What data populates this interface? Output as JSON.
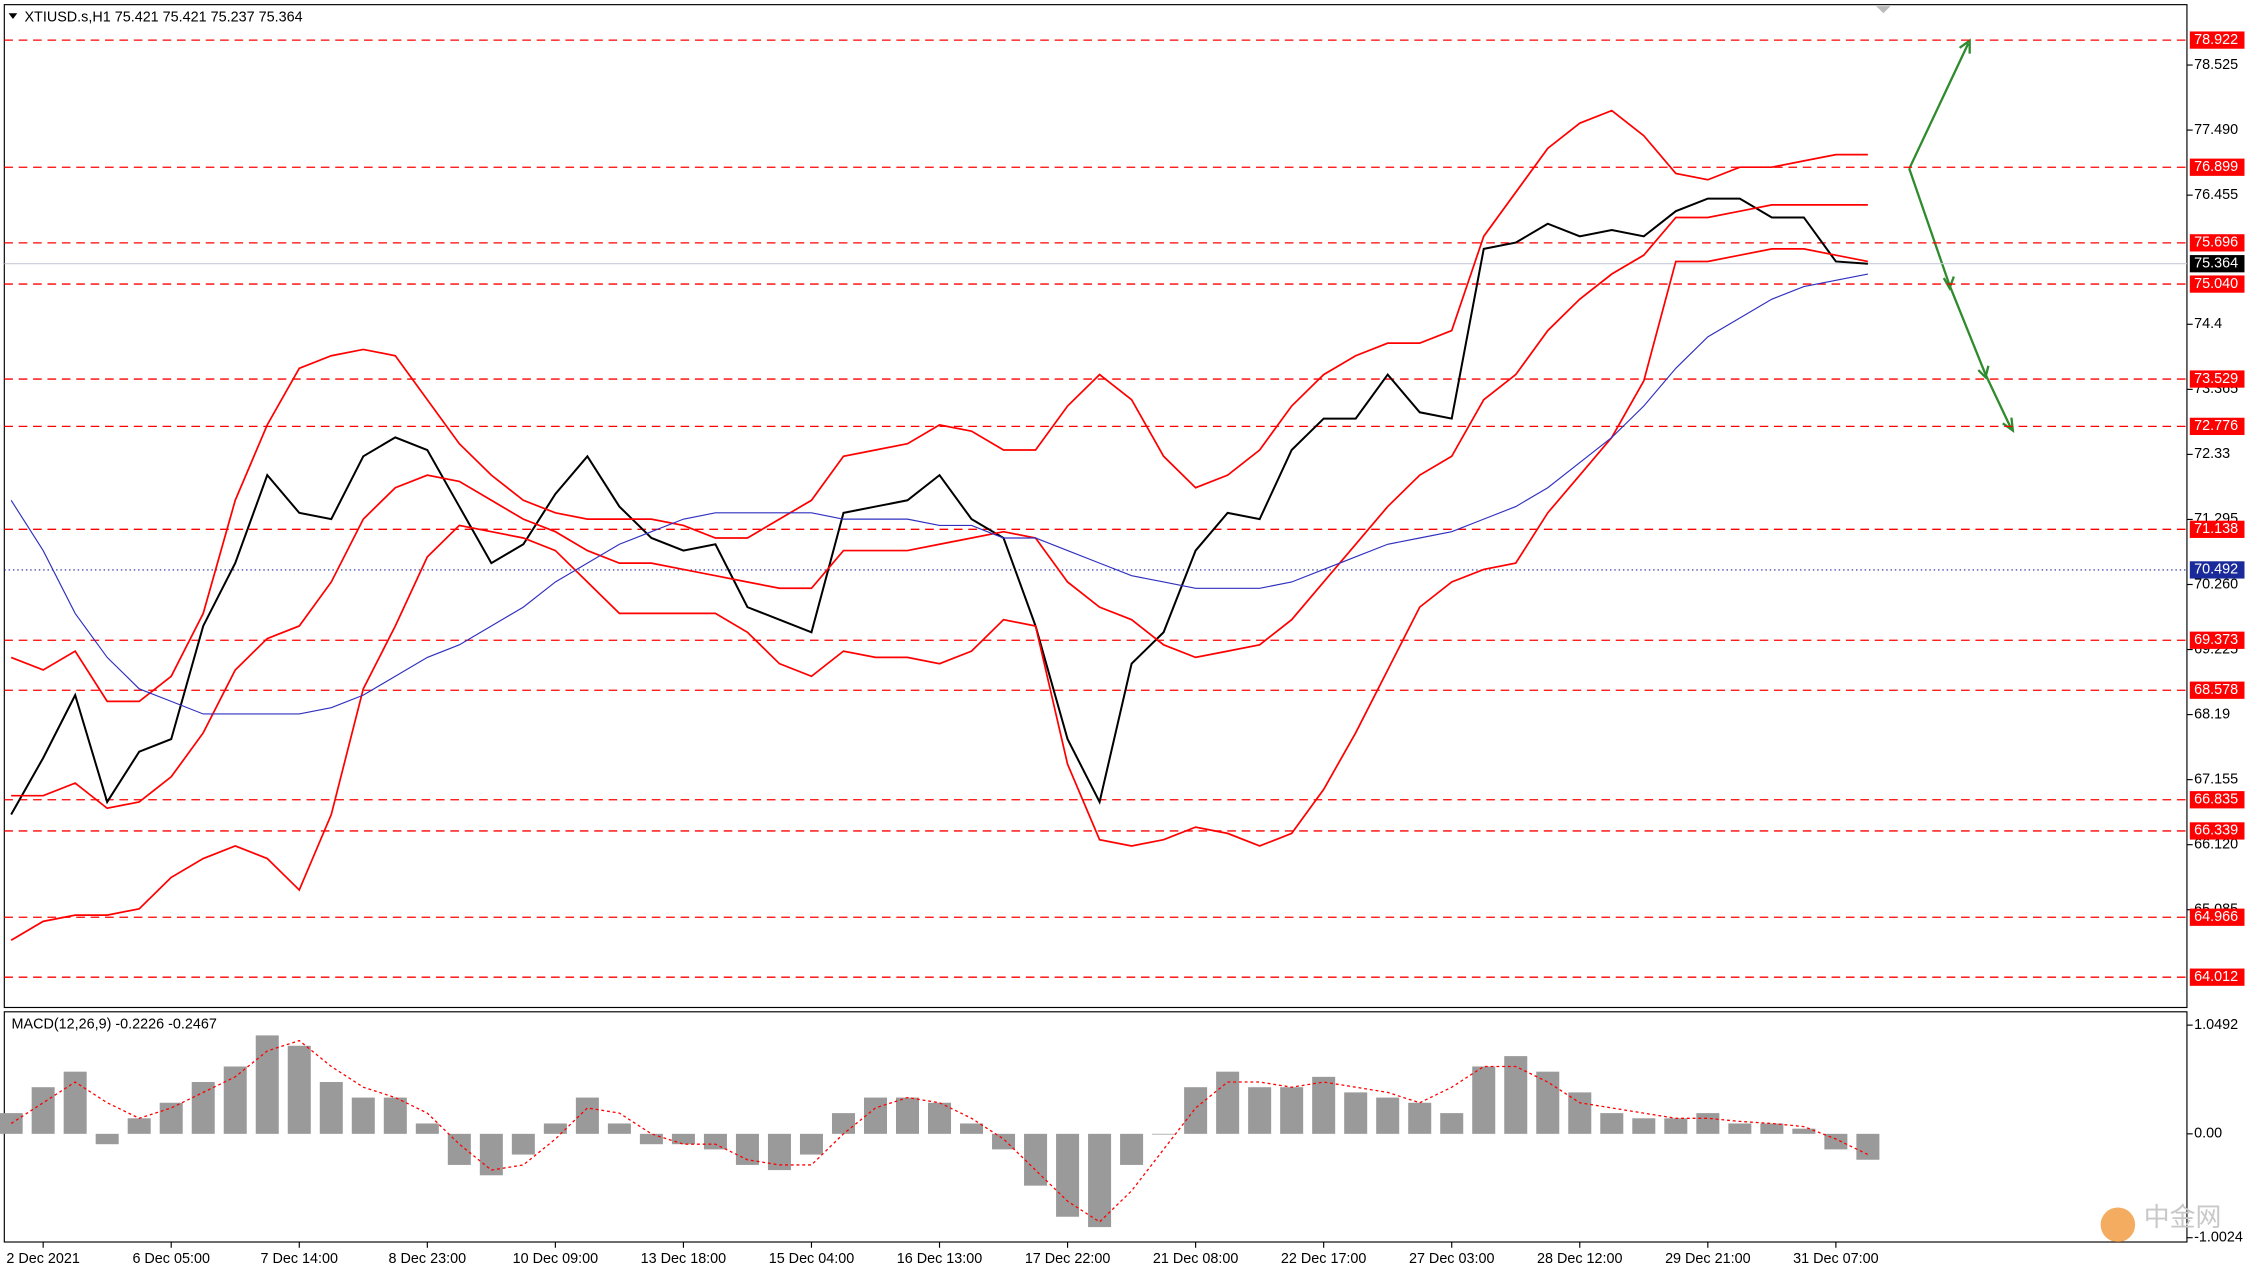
{
  "chart_data": [
    {
      "type": "line",
      "title": "XTIUSD.s,H1  75.421 75.421 75.237 75.364",
      "categories": [
        null,
        "2 Dec 2021",
        null,
        null,
        null,
        "6 Dec 05:00",
        null,
        null,
        null,
        "7 Dec 14:00",
        null,
        null,
        null,
        "8 Dec 23:00",
        null,
        null,
        null,
        "10 Dec 09:00",
        null,
        null,
        null,
        "13 Dec 18:00",
        null,
        null,
        null,
        "15 Dec 04:00",
        null,
        null,
        null,
        "16 Dec 13:00",
        null,
        null,
        null,
        "17 Dec 22:00",
        null,
        null,
        null,
        "21 Dec 08:00",
        null,
        null,
        null,
        "22 Dec 17:00",
        null,
        null,
        null,
        "27 Dec 03:00",
        null,
        null,
        null,
        "28 Dec 12:00",
        null,
        null,
        null,
        "29 Dec 21:00",
        null,
        null,
        null,
        "31 Dec 07:00",
        null
      ],
      "series": [
        {
          "color": "#000000",
          "values": [
            66.6,
            67.5,
            68.5,
            66.8,
            67.6,
            67.8,
            69.6,
            70.6,
            72.0,
            71.4,
            71.3,
            72.3,
            72.6,
            72.4,
            71.5,
            70.6,
            70.9,
            71.7,
            72.3,
            71.5,
            71.0,
            70.8,
            70.9,
            69.9,
            69.7,
            69.5,
            71.4,
            71.5,
            71.6,
            72.0,
            71.3,
            71.0,
            69.6,
            67.8,
            66.8,
            69.0,
            69.5,
            70.8,
            71.4,
            71.3,
            72.4,
            72.9,
            72.9,
            73.6,
            73.0,
            72.9,
            75.6,
            75.7,
            76.0,
            75.8,
            75.9,
            75.8,
            76.2,
            76.4,
            76.4,
            76.1,
            76.1,
            75.4,
            75.364
          ]
        },
        {
          "color": "#ff0000",
          "values": [
            69.1,
            68.9,
            69.2,
            68.4,
            68.4,
            68.8,
            69.8,
            71.6,
            72.8,
            73.7,
            73.9,
            74.0,
            73.9,
            73.2,
            72.5,
            72.0,
            71.6,
            71.4,
            71.3,
            71.3,
            71.3,
            71.2,
            71.0,
            71.0,
            71.3,
            71.6,
            72.3,
            72.4,
            72.5,
            72.8,
            72.7,
            72.4,
            72.4,
            73.1,
            73.6,
            73.2,
            72.3,
            71.8,
            72.0,
            72.4,
            73.1,
            73.6,
            73.9,
            74.1,
            74.1,
            74.3,
            75.8,
            76.5,
            77.2,
            77.6,
            77.8,
            77.4,
            76.8,
            76.7,
            76.9,
            76.9,
            77.0,
            77.1,
            77.1
          ]
        },
        {
          "color": "#ff0000",
          "values": [
            66.9,
            66.9,
            67.1,
            66.7,
            66.8,
            67.2,
            67.9,
            68.9,
            69.4,
            69.6,
            70.3,
            71.3,
            71.8,
            72.0,
            71.9,
            71.6,
            71.3,
            71.1,
            70.8,
            70.6,
            70.6,
            70.5,
            70.4,
            70.3,
            70.2,
            70.2,
            70.8,
            70.8,
            70.8,
            70.9,
            71.0,
            71.1,
            71.0,
            70.3,
            69.9,
            69.7,
            69.3,
            69.1,
            69.2,
            69.3,
            69.7,
            70.3,
            70.9,
            71.5,
            72.0,
            72.3,
            73.2,
            73.6,
            74.3,
            74.8,
            75.2,
            75.5,
            76.1,
            76.1,
            76.2,
            76.3,
            76.3,
            76.3,
            76.3
          ]
        },
        {
          "color": "#ff0000",
          "values": [
            64.6,
            64.9,
            65.0,
            65.0,
            65.1,
            65.6,
            65.9,
            66.1,
            65.9,
            65.4,
            66.6,
            68.6,
            69.6,
            70.7,
            71.2,
            71.1,
            71.0,
            70.8,
            70.3,
            69.8,
            69.8,
            69.8,
            69.8,
            69.5,
            69.0,
            68.8,
            69.2,
            69.1,
            69.1,
            69.0,
            69.2,
            69.7,
            69.6,
            67.4,
            66.2,
            66.1,
            66.2,
            66.4,
            66.3,
            66.1,
            66.3,
            67.0,
            67.9,
            68.9,
            69.9,
            70.3,
            70.5,
            70.6,
            71.4,
            72.0,
            72.6,
            73.5,
            75.4,
            75.4,
            75.5,
            75.6,
            75.6,
            75.5,
            75.4
          ]
        },
        {
          "color": "#3030c0",
          "values": [
            71.6,
            70.8,
            69.8,
            69.1,
            68.6,
            68.4,
            68.2,
            68.2,
            68.2,
            68.2,
            68.3,
            68.5,
            68.8,
            69.1,
            69.3,
            69.6,
            69.9,
            70.3,
            70.6,
            70.9,
            71.1,
            71.3,
            71.4,
            71.4,
            71.4,
            71.4,
            71.3,
            71.3,
            71.3,
            71.2,
            71.2,
            71.0,
            71.0,
            70.8,
            70.6,
            70.4,
            70.3,
            70.2,
            70.2,
            70.2,
            70.3,
            70.5,
            70.7,
            70.9,
            71.0,
            71.1,
            71.3,
            71.5,
            71.8,
            72.2,
            72.6,
            73.1,
            73.7,
            74.2,
            74.5,
            74.8,
            75.0,
            75.1,
            75.2
          ]
        }
      ],
      "ylim": [
        63.53,
        79.44
      ],
      "yticks": [
        78.525,
        {
          "value": 77.49,
          "label": "77.490"
        },
        76.455,
        74.4,
        73.365,
        72.33,
        71.295,
        {
          "value": 70.26,
          "label": "70.260"
        },
        69.225,
        68.19,
        67.155,
        {
          "value": 66.12,
          "label": "66.120"
        },
        65.085
      ],
      "levels": [
        78.922,
        76.899,
        75.696,
        75.04,
        73.529,
        72.776,
        71.138,
        69.373,
        68.578,
        66.835,
        66.339,
        64.966,
        64.012
      ],
      "level_labels": [
        "78.922",
        "76.899",
        "75.696",
        "75.040",
        "73.529",
        "72.776",
        "71.138",
        "69.373",
        "68.578",
        "66.835",
        "66.339",
        "64.966",
        "64.012"
      ],
      "level_color": "#ff0000",
      "marker_line": 70.492,
      "marker_color": "#1a2a9a",
      "current_price": 75.364,
      "current_color": "#000000"
    },
    {
      "type": "bar",
      "title": "MACD(12,26,9) -0.2226 -0.2467",
      "series": [
        {
          "color": "#9a9a9a",
          "values": [
            0.2,
            0.45,
            0.6,
            -0.1,
            0.15,
            0.3,
            0.5,
            0.65,
            0.95,
            0.85,
            0.5,
            0.35,
            0.35,
            0.1,
            -0.3,
            -0.4,
            -0.2,
            0.1,
            0.35,
            0.1,
            -0.1,
            -0.1,
            -0.15,
            -0.3,
            -0.35,
            -0.2,
            0.2,
            0.35,
            0.35,
            0.3,
            0.1,
            -0.15,
            -0.5,
            -0.8,
            -0.9,
            -0.3,
            0.0,
            0.45,
            0.6,
            0.45,
            0.45,
            0.55,
            0.4,
            0.35,
            0.3,
            0.2,
            0.65,
            0.75,
            0.6,
            0.4,
            0.2,
            0.15,
            0.15,
            0.2,
            0.1,
            0.1,
            0.05,
            -0.15,
            -0.25
          ]
        },
        {
          "color": "#ff0000",
          "values": [
            0.1,
            0.3,
            0.5,
            0.3,
            0.15,
            0.25,
            0.4,
            0.55,
            0.8,
            0.9,
            0.65,
            0.45,
            0.35,
            0.2,
            -0.1,
            -0.35,
            -0.3,
            -0.05,
            0.25,
            0.2,
            0.0,
            -0.1,
            -0.1,
            -0.25,
            -0.3,
            -0.3,
            0.0,
            0.25,
            0.35,
            0.3,
            0.15,
            -0.05,
            -0.35,
            -0.65,
            -0.85,
            -0.55,
            -0.15,
            0.25,
            0.5,
            0.5,
            0.45,
            0.5,
            0.45,
            0.4,
            0.3,
            0.45,
            0.65,
            0.65,
            0.5,
            0.3,
            0.25,
            0.2,
            0.15,
            0.15,
            0.12,
            0.1,
            0.07,
            -0.05,
            -0.2
          ]
        }
      ],
      "ylim": [
        -1.03,
        1.15
      ],
      "yticks": [
        1.0492,
        {
          "value": 0,
          "label": "0.00"
        },
        -1.0024
      ]
    },
    {
      "watermark": "中金网"
    }
  ]
}
